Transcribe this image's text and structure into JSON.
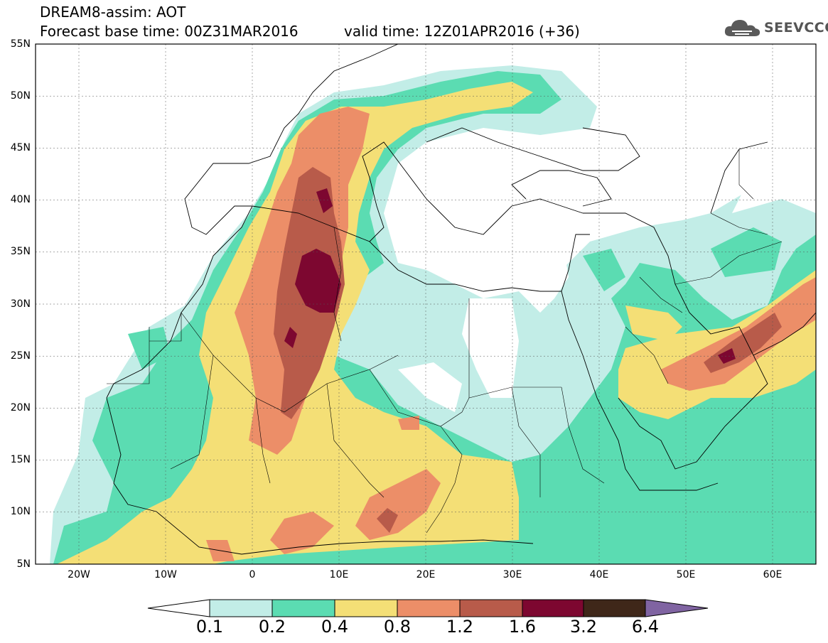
{
  "title": {
    "line1": "DREAM8-assim: AOT",
    "line2_left": "Forecast base time: 00Z31MAR2016",
    "line2_right": "valid time: 12Z01APR2016 (+36)"
  },
  "logo": {
    "text": "SEEVCCC",
    "icon": "cloud-icon"
  },
  "axes": {
    "lon_range": [
      -25,
      65
    ],
    "lat_range": [
      5,
      55
    ],
    "lat_labels": [
      "55N",
      "50N",
      "45N",
      "40N",
      "35N",
      "30N",
      "25N",
      "20N",
      "15N",
      "10N",
      "5N"
    ],
    "lon_labels": [
      "20W",
      "10W",
      "0",
      "10E",
      "20E",
      "30E",
      "40E",
      "50E",
      "60E"
    ]
  },
  "colorbar": {
    "levels": [
      "0.1",
      "0.2",
      "0.4",
      "0.8",
      "1.2",
      "1.6",
      "3.2",
      "6.4"
    ],
    "colors": [
      "#c2ede7",
      "#5bdcb2",
      "#f4df76",
      "#ec8e68",
      "#b85b4a",
      "#7d0730",
      "#3f2719",
      "#8064a2"
    ],
    "below_color": "#ffffff"
  },
  "field_colors": {
    "lvl1": "#c2ede7",
    "lvl2": "#5bdcb2",
    "lvl3": "#f4df76",
    "lvl4": "#ec8e68",
    "lvl5": "#b85b4a",
    "lvl6": "#7d0730"
  }
}
